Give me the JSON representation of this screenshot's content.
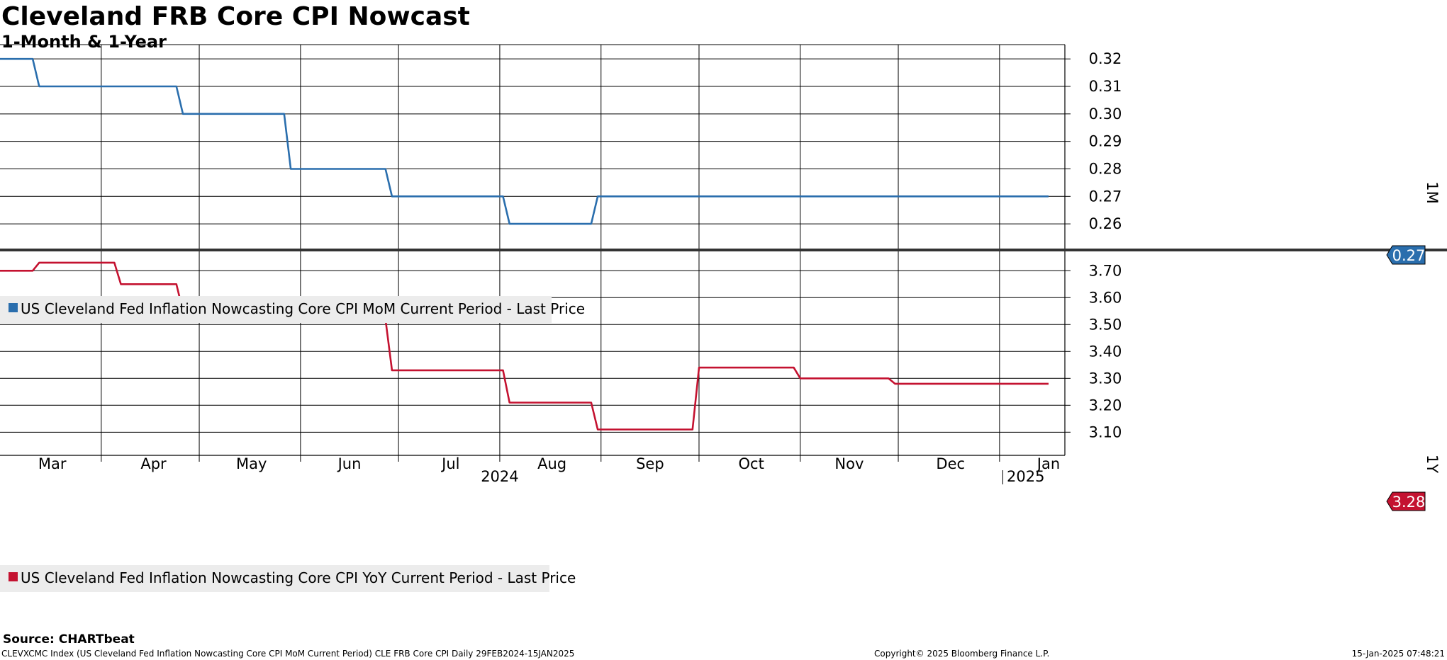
{
  "header": {
    "title": "Cleveland FRB Core CPI Nowcast",
    "subtitle": "1-Month & 1-Year"
  },
  "colors": {
    "mom": "#2a6ead",
    "yoy": "#c41230"
  },
  "chart_data": [
    {
      "type": "line",
      "panel_label": "1M",
      "legend": "US Cleveland Fed Inflation Nowcasting Core CPI MoM Current Period - Last Price",
      "ylim": [
        0.2505,
        0.3252
      ],
      "ticks": [
        0.26,
        0.27,
        0.28,
        0.29,
        0.3,
        0.31,
        0.32
      ],
      "tick_labels": [
        "0.26",
        "0.27",
        "0.28",
        "0.29",
        "0.30",
        "0.31",
        "0.32"
      ],
      "last_value_label": "0.27",
      "series": [
        {
          "points": [
            [
              "2024-02-29",
              0.32
            ],
            [
              "2024-03-10",
              0.32
            ],
            [
              "2024-03-12",
              0.31
            ],
            [
              "2024-04-23",
              0.31
            ],
            [
              "2024-04-25",
              0.3
            ],
            [
              "2024-05-26",
              0.3
            ],
            [
              "2024-05-28",
              0.28
            ],
            [
              "2024-06-26",
              0.28
            ],
            [
              "2024-06-28",
              0.27
            ],
            [
              "2024-08-01",
              0.27
            ],
            [
              "2024-08-03",
              0.26
            ],
            [
              "2024-08-28",
              0.26
            ],
            [
              "2024-08-30",
              0.27
            ],
            [
              "2025-01-15",
              0.27
            ]
          ]
        }
      ]
    },
    {
      "type": "line",
      "panel_label": "1Y",
      "legend": "US Cleveland Fed Inflation Nowcasting Core CPI YoY Current Period - Last Price",
      "ylim": [
        3.014,
        3.777
      ],
      "ticks": [
        3.1,
        3.2,
        3.3,
        3.4,
        3.5,
        3.6,
        3.7
      ],
      "tick_labels": [
        "3.10",
        "3.20",
        "3.30",
        "3.40",
        "3.50",
        "3.60",
        "3.70"
      ],
      "last_value_label": "3.28",
      "series": [
        {
          "points": [
            [
              "2024-02-29",
              3.7
            ],
            [
              "2024-03-10",
              3.7
            ],
            [
              "2024-03-12",
              3.73
            ],
            [
              "2024-04-04",
              3.73
            ],
            [
              "2024-04-06",
              3.65
            ],
            [
              "2024-04-23",
              3.65
            ],
            [
              "2024-04-25",
              3.55
            ],
            [
              "2024-05-24",
              3.55
            ],
            [
              "2024-05-26",
              3.52
            ],
            [
              "2024-06-26",
              3.52
            ],
            [
              "2024-06-28",
              3.33
            ],
            [
              "2024-08-01",
              3.33
            ],
            [
              "2024-08-03",
              3.21
            ],
            [
              "2024-08-28",
              3.21
            ],
            [
              "2024-08-30",
              3.11
            ],
            [
              "2024-09-28",
              3.11
            ],
            [
              "2024-09-30",
              3.34
            ],
            [
              "2024-10-29",
              3.34
            ],
            [
              "2024-10-31",
              3.3
            ],
            [
              "2024-11-27",
              3.3
            ],
            [
              "2024-11-29",
              3.28
            ],
            [
              "2025-01-15",
              3.28
            ]
          ]
        }
      ]
    }
  ],
  "x_axis": {
    "month_labels": [
      {
        "label": "Mar",
        "date": "2024-03-16"
      },
      {
        "label": "Apr",
        "date": "2024-04-16"
      },
      {
        "label": "May",
        "date": "2024-05-16"
      },
      {
        "label": "Jun",
        "date": "2024-06-15"
      },
      {
        "label": "Jul",
        "date": "2024-07-16"
      },
      {
        "label": "Aug",
        "date": "2024-08-16"
      },
      {
        "label": "Sep",
        "date": "2024-09-15"
      },
      {
        "label": "Oct",
        "date": "2024-10-16"
      },
      {
        "label": "Nov",
        "date": "2024-11-15"
      },
      {
        "label": "Dec",
        "date": "2024-12-16"
      },
      {
        "label": "Jan",
        "date": "2025-01-15"
      }
    ],
    "gridlines": [
      "2024-03-31",
      "2024-04-30",
      "2024-05-31",
      "2024-06-30",
      "2024-07-31",
      "2024-08-31",
      "2024-09-30",
      "2024-10-31",
      "2024-11-30",
      "2024-12-31"
    ],
    "year_labels": [
      {
        "label": "2024",
        "date": "2024-07-31"
      },
      {
        "label": "2025",
        "date": "2025-01-08"
      }
    ],
    "year_separator": "2025-01-01",
    "start": "2024-02-29",
    "end": "2025-01-20"
  },
  "footer": {
    "source": "Source: CHARTbeat",
    "description": "CLEVXCMC Index (US Cleveland Fed Inflation Nowcasting Core CPI MoM Current Period) CLE FRB Core CPI  Daily 29FEB2024-15JAN2025",
    "copyright": "Copyright© 2025 Bloomberg Finance L.P.",
    "timestamp": "15-Jan-2025 07:48:21"
  }
}
